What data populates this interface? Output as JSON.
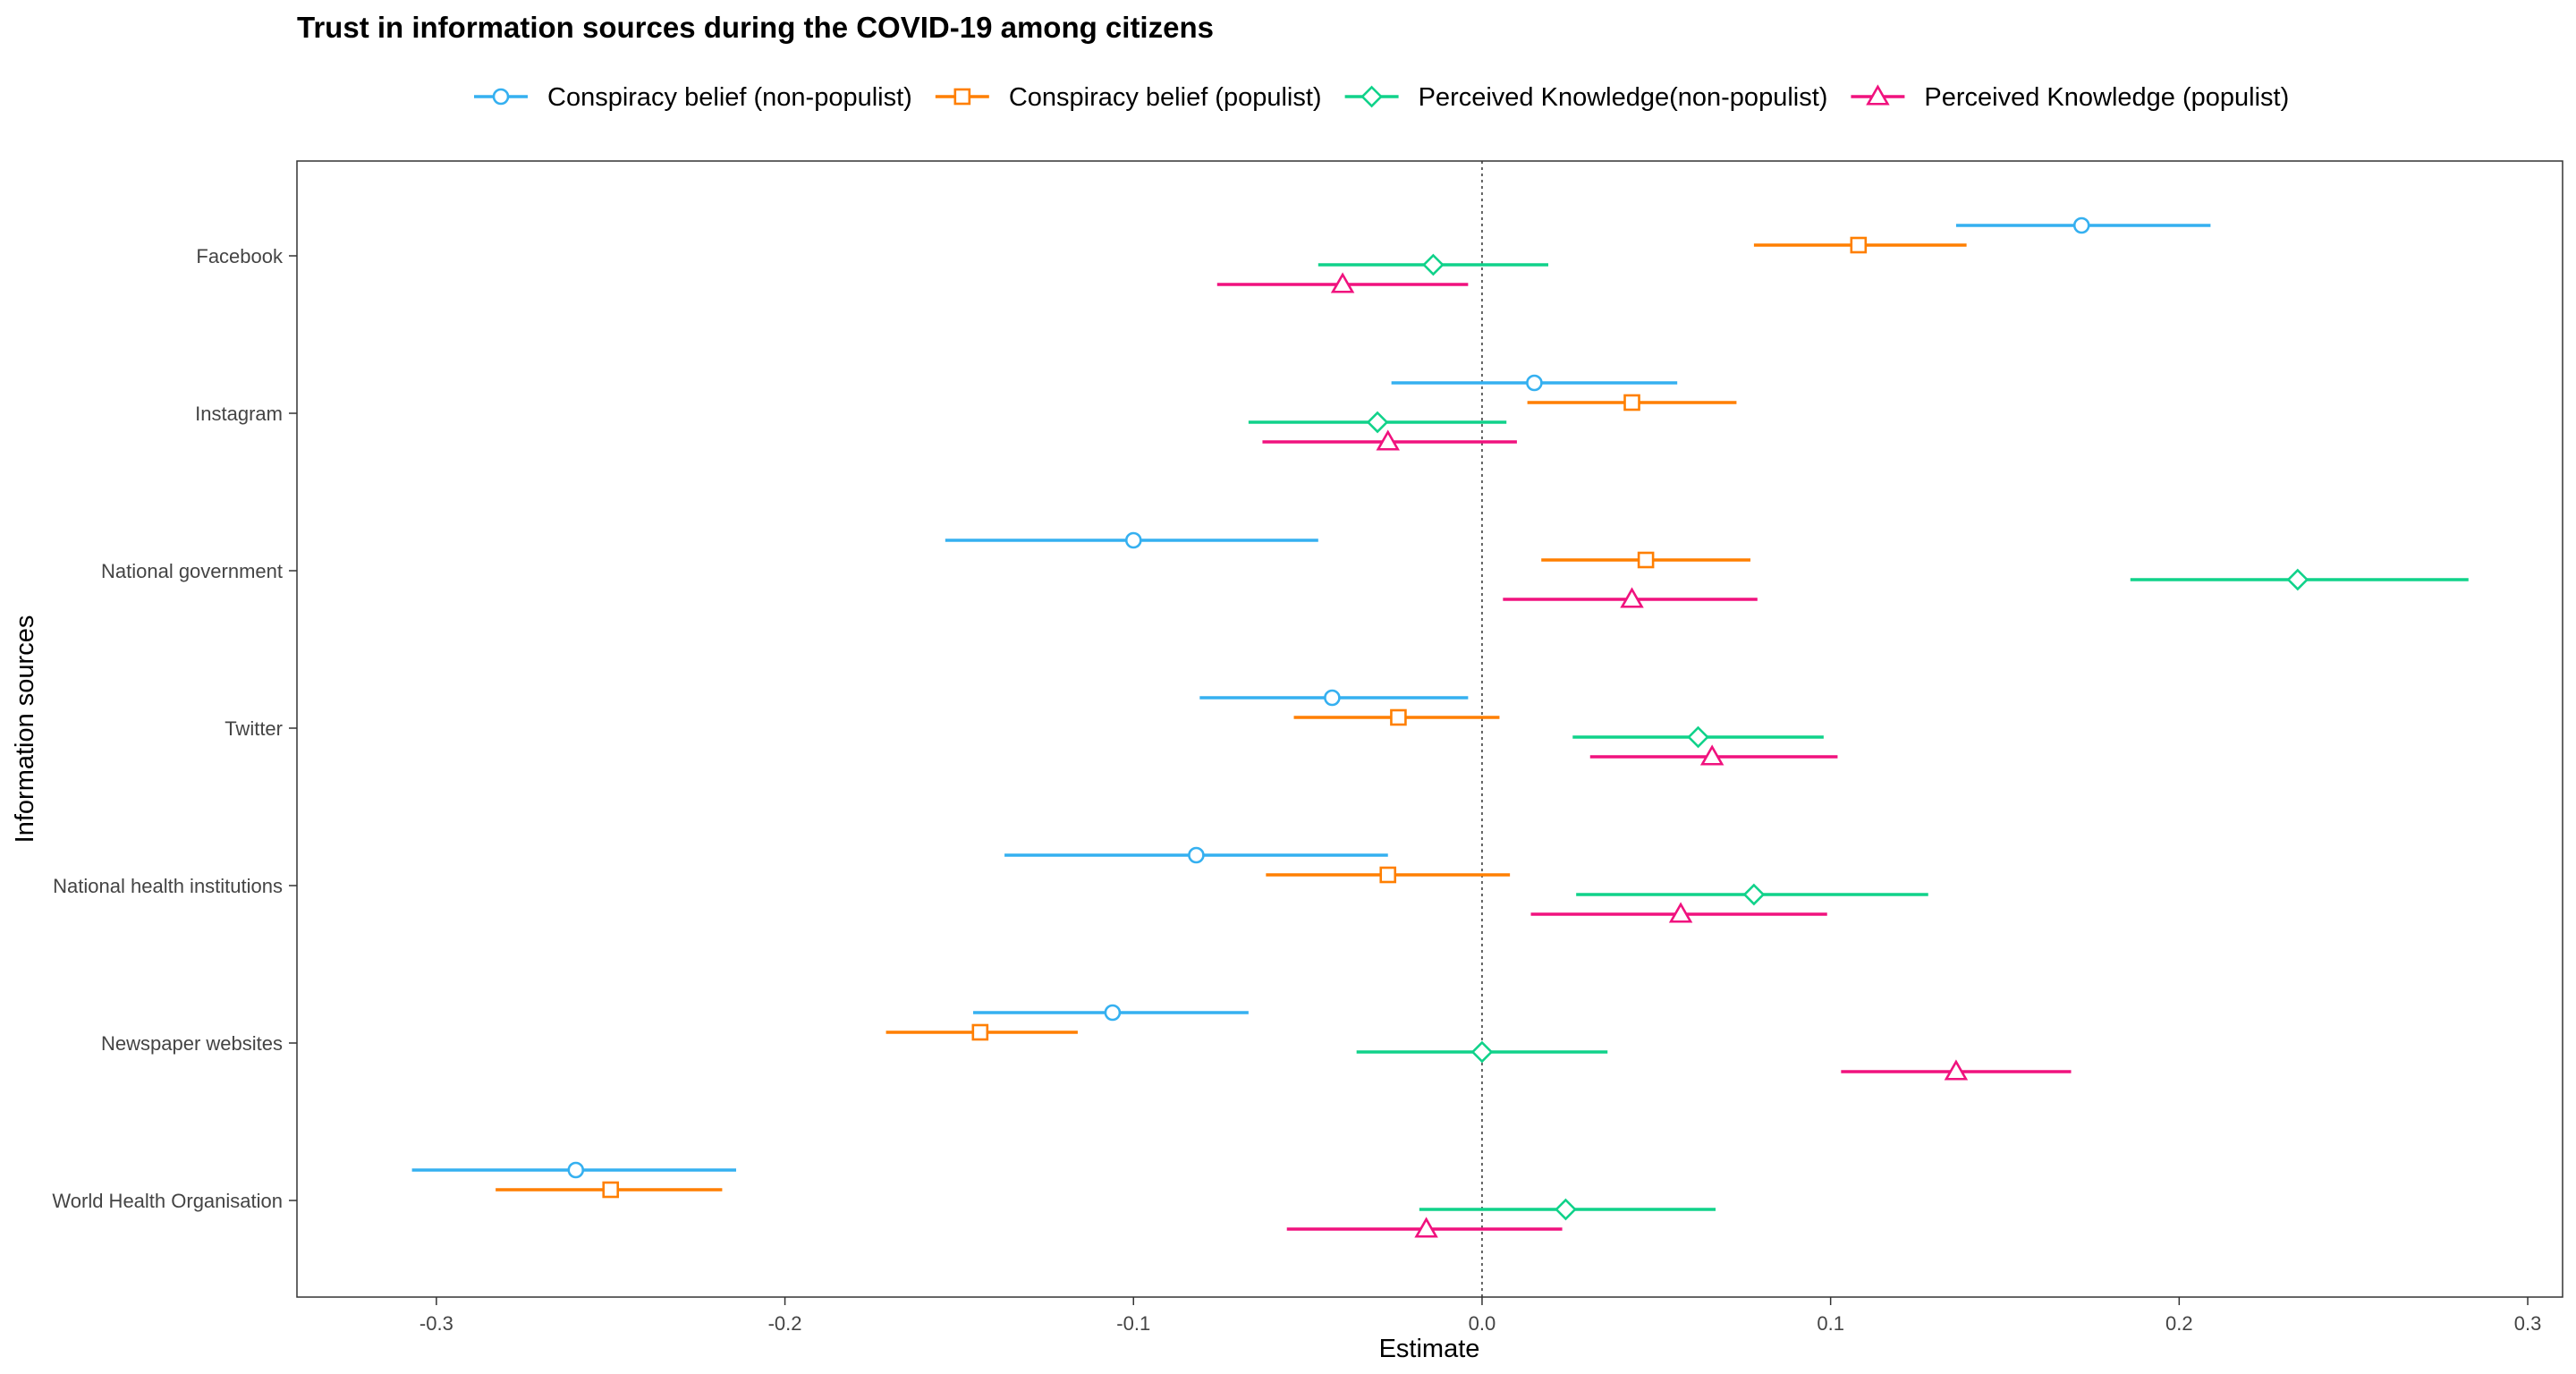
{
  "chart_data": {
    "type": "scatter",
    "subtype": "coefficient-plot-with-error-bars",
    "title": "Trust in information sources during the COVID-19 among citizens",
    "xlabel": "Estimate",
    "ylabel": "Information sources",
    "xlim": [
      -0.34,
      0.31
    ],
    "xticks": [
      -0.3,
      -0.2,
      -0.1,
      0.0,
      0.1,
      0.2,
      0.3
    ],
    "xtick_labels": [
      "-0.3",
      "-0.2",
      "-0.1",
      "0.0",
      "0.1",
      "0.2",
      "0.3"
    ],
    "reference_line": 0,
    "grid": false,
    "legend_position": "top",
    "categories": [
      "Facebook",
      "Instagram",
      "National government",
      "Twitter",
      "National health institutions",
      "Newspaper websites",
      "World Health Organisation"
    ],
    "series": [
      {
        "name": "Conspiracy belief (non-populist)",
        "color": "#35b0f0",
        "marker": "circle",
        "estimates": [
          0.172,
          0.015,
          -0.1,
          -0.043,
          -0.082,
          -0.106,
          -0.26
        ],
        "lower": [
          0.136,
          -0.026,
          -0.154,
          -0.081,
          -0.137,
          -0.146,
          -0.307
        ],
        "upper": [
          0.209,
          0.056,
          -0.047,
          -0.004,
          -0.027,
          -0.067,
          -0.214
        ]
      },
      {
        "name": "Conspiracy belief (populist)",
        "color": "#ff7f00",
        "marker": "square",
        "estimates": [
          0.108,
          0.043,
          0.047,
          -0.024,
          -0.027,
          -0.144,
          -0.25
        ],
        "lower": [
          0.078,
          0.013,
          0.017,
          -0.054,
          -0.062,
          -0.171,
          -0.283
        ],
        "upper": [
          0.139,
          0.073,
          0.077,
          0.005,
          0.008,
          -0.116,
          -0.218
        ]
      },
      {
        "name": "Perceived Knowledge(non-populist)",
        "color": "#10d28a",
        "marker": "diamond",
        "estimates": [
          -0.014,
          -0.03,
          0.234,
          0.062,
          0.078,
          0.0,
          0.024
        ],
        "lower": [
          -0.047,
          -0.067,
          0.186,
          0.026,
          0.027,
          -0.036,
          -0.018
        ],
        "upper": [
          0.019,
          0.007,
          0.283,
          0.098,
          0.128,
          0.036,
          0.067
        ]
      },
      {
        "name": "Perceived Knowledge (populist)",
        "color": "#f0127e",
        "marker": "triangle",
        "estimates": [
          -0.04,
          -0.027,
          0.043,
          0.066,
          0.057,
          0.136,
          -0.016
        ],
        "lower": [
          -0.076,
          -0.063,
          0.006,
          0.031,
          0.014,
          0.103,
          -0.056
        ],
        "upper": [
          -0.004,
          0.01,
          0.079,
          0.102,
          0.099,
          0.169,
          0.023
        ]
      }
    ]
  }
}
